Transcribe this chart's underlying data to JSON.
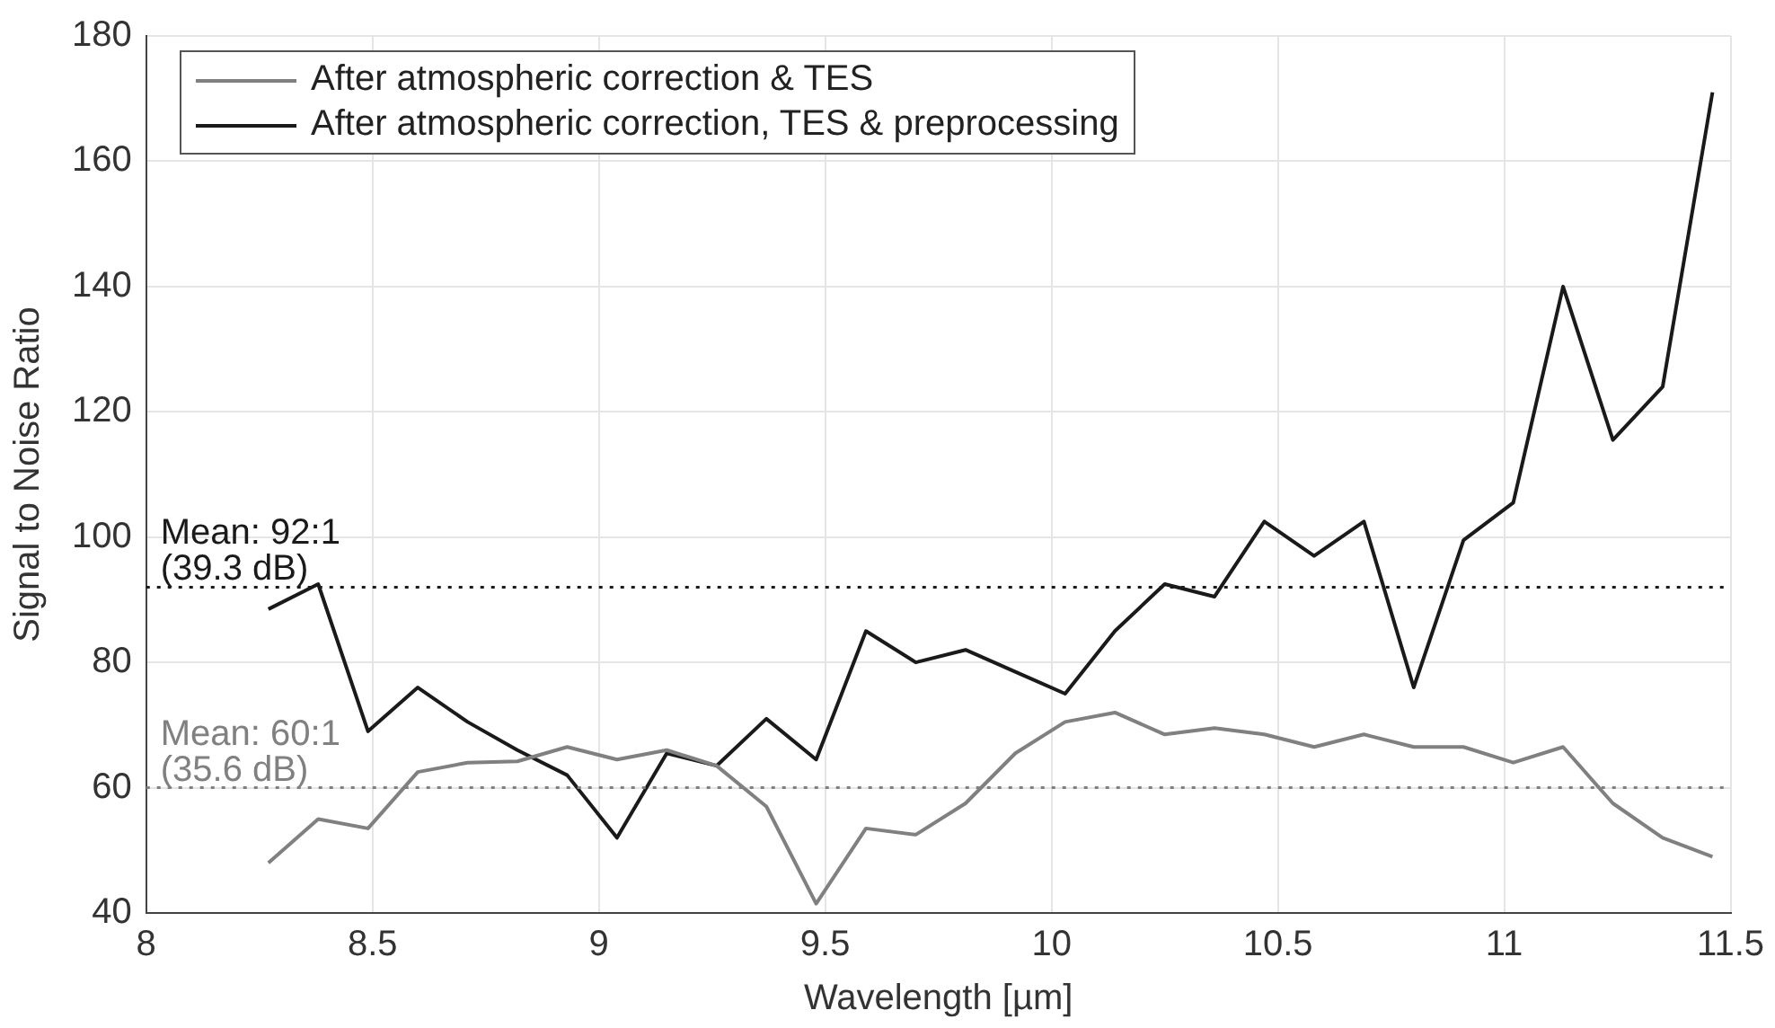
{
  "chart_data": {
    "type": "line",
    "xlabel": "Wavelength [µm]",
    "ylabel": "Signal to Noise Ratio",
    "x": [
      8.27,
      8.38,
      8.49,
      8.6,
      8.71,
      8.82,
      8.93,
      9.04,
      9.15,
      9.26,
      9.37,
      9.48,
      9.59,
      9.7,
      9.81,
      9.92,
      10.03,
      10.14,
      10.25,
      10.36,
      10.47,
      10.58,
      10.69,
      10.8,
      10.91,
      11.02,
      11.13,
      11.24,
      11.35,
      11.46
    ],
    "series": [
      {
        "name": "After atmospheric correction & TES",
        "color": "#808080",
        "values": [
          48,
          55,
          53.5,
          62.5,
          64,
          64.2,
          66.5,
          64.5,
          66,
          63.5,
          57,
          41.5,
          53.5,
          52.5,
          57.5,
          65.5,
          70.5,
          72,
          68.5,
          69.5,
          68.5,
          66.5,
          68.5,
          66.5,
          66.5,
          64,
          66.5,
          57.5,
          52,
          49
        ]
      },
      {
        "name": "After atmospheric correction, TES & preprocessing",
        "color": "#1a1a1a",
        "values": [
          88.5,
          92.5,
          69,
          76,
          70.5,
          66,
          62,
          52,
          65.5,
          63.5,
          71,
          64.5,
          85,
          80,
          82,
          78.5,
          75,
          85,
          92.5,
          90.5,
          102.5,
          97,
          102.5,
          76,
          99.5,
          105.5,
          140,
          115.5,
          124,
          171
        ]
      }
    ],
    "xlim": [
      8,
      11.5
    ],
    "xticks": [
      8,
      8.5,
      9,
      9.5,
      10,
      10.5,
      11,
      11.5
    ],
    "ylim": [
      40,
      180
    ],
    "yticks": [
      40,
      60,
      80,
      100,
      120,
      140,
      160,
      180
    ],
    "ref_lines": [
      {
        "axis": "y",
        "value": 92,
        "label": "Mean: 92:1\n(39.3 dB)",
        "color": "#1a1a1a",
        "line_style": "dotted"
      },
      {
        "axis": "y",
        "value": 60,
        "label": "Mean: 60:1\n(35.6 dB)",
        "color": "#808080",
        "line_style": "dotted"
      }
    ],
    "grid": true,
    "legend": "top left",
    "marker": "none",
    "line_style": "solid"
  }
}
